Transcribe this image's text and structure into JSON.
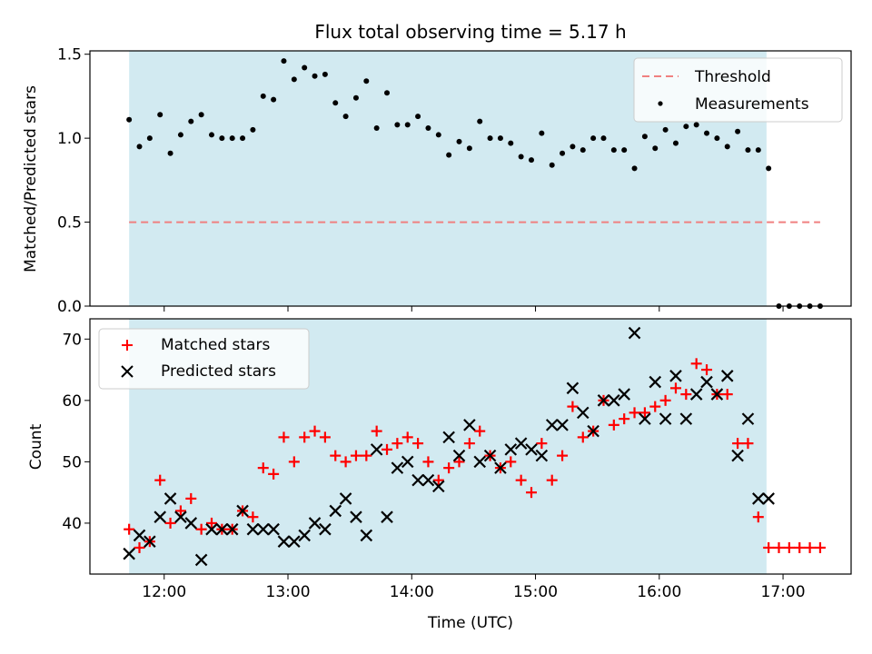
{
  "title": "Flux total observing time = 5.17 h",
  "shade_color": "#add8e6",
  "colors": {
    "threshold": "#f08080",
    "measurements": "#000000",
    "matched": "#ff0000",
    "predicted": "#000000"
  },
  "chart_data": [
    {
      "type": "scatter",
      "ylabel": "Matched/Predicted stars",
      "ylim": [
        0,
        1.52
      ],
      "yticks": [
        0.0,
        0.5,
        1.0,
        1.5
      ],
      "ytick_labels": [
        "0.0",
        "0.5",
        "1.0",
        "1.5"
      ],
      "xlim": [
        "11:24",
        "17:33"
      ],
      "shaded_range": [
        "11:43",
        "16:52"
      ],
      "legend": {
        "placement": "top-right",
        "entries": [
          "Threshold",
          "Measurements"
        ]
      },
      "threshold": {
        "name": "Threshold",
        "y": 0.5,
        "x": [
          "11:43",
          "17:18"
        ]
      },
      "measurements": {
        "name": "Measurements",
        "x": [
          "11:43",
          "11:48",
          "11:53",
          "11:58",
          "12:03",
          "12:08",
          "12:13",
          "12:18",
          "12:23",
          "12:28",
          "12:33",
          "12:38",
          "12:43",
          "12:48",
          "12:53",
          "12:58",
          "13:03",
          "13:08",
          "13:13",
          "13:18",
          "13:23",
          "13:28",
          "13:33",
          "13:38",
          "13:43",
          "13:48",
          "13:53",
          "13:58",
          "14:03",
          "14:08",
          "14:13",
          "14:18",
          "14:23",
          "14:28",
          "14:33",
          "14:38",
          "14:43",
          "14:48",
          "14:53",
          "14:58",
          "15:03",
          "15:08",
          "15:13",
          "15:18",
          "15:23",
          "15:28",
          "15:33",
          "15:38",
          "15:43",
          "15:48",
          "15:53",
          "15:58",
          "16:03",
          "16:08",
          "16:13",
          "16:18",
          "16:23",
          "16:28",
          "16:33",
          "16:38",
          "16:43",
          "16:48",
          "16:53",
          "16:58",
          "17:03",
          "17:08",
          "17:13",
          "17:18"
        ],
        "y": [
          1.11,
          0.95,
          1.0,
          1.14,
          0.91,
          1.02,
          1.1,
          1.14,
          1.02,
          1.0,
          1.0,
          1.0,
          1.05,
          1.25,
          1.23,
          1.46,
          1.35,
          1.42,
          1.37,
          1.38,
          1.21,
          1.13,
          1.24,
          1.34,
          1.06,
          1.27,
          1.08,
          1.08,
          1.13,
          1.06,
          1.02,
          0.9,
          0.98,
          0.94,
          1.1,
          1.0,
          1.0,
          0.97,
          0.89,
          0.87,
          1.03,
          0.84,
          0.91,
          0.95,
          0.93,
          1.0,
          1.0,
          0.93,
          0.93,
          0.82,
          1.01,
          0.94,
          1.05,
          0.97,
          1.07,
          1.08,
          1.03,
          1.0,
          0.95,
          1.04,
          0.93,
          0.93,
          0.82,
          0.0,
          0.0,
          0.0,
          0.0,
          0.0
        ]
      },
      "xticks": [
        "12:00",
        "13:00",
        "14:00",
        "15:00",
        "16:00",
        "17:00"
      ]
    },
    {
      "type": "scatter",
      "xlabel": "Time (UTC)",
      "ylabel": "Count",
      "ylim": [
        31.7,
        73.3
      ],
      "yticks": [
        40,
        50,
        60,
        70
      ],
      "ytick_labels": [
        "40",
        "50",
        "60",
        "70"
      ],
      "xlim": [
        "11:24",
        "17:33"
      ],
      "xticks": [
        "12:00",
        "13:00",
        "14:00",
        "15:00",
        "16:00",
        "17:00"
      ],
      "xtick_labels": [
        "12:00",
        "13:00",
        "14:00",
        "15:00",
        "16:00",
        "17:00"
      ],
      "shaded_range": [
        "11:43",
        "16:52"
      ],
      "legend": {
        "placement": "top-left",
        "entries": [
          "Matched stars",
          "Predicted stars"
        ]
      },
      "series": [
        {
          "name": "Matched stars",
          "x": [
            "11:43",
            "11:48",
            "11:53",
            "11:58",
            "12:03",
            "12:08",
            "12:13",
            "12:18",
            "12:23",
            "12:28",
            "12:33",
            "12:38",
            "12:43",
            "12:48",
            "12:53",
            "12:58",
            "13:03",
            "13:08",
            "13:13",
            "13:18",
            "13:23",
            "13:28",
            "13:33",
            "13:38",
            "13:43",
            "13:48",
            "13:53",
            "13:58",
            "14:03",
            "14:08",
            "14:13",
            "14:18",
            "14:23",
            "14:28",
            "14:33",
            "14:38",
            "14:43",
            "14:48",
            "14:53",
            "14:58",
            "15:03",
            "15:08",
            "15:13",
            "15:18",
            "15:23",
            "15:28",
            "15:33",
            "15:38",
            "15:43",
            "15:48",
            "15:53",
            "15:58",
            "16:03",
            "16:08",
            "16:13",
            "16:18",
            "16:23",
            "16:28",
            "16:33",
            "16:38",
            "16:43",
            "16:48",
            "16:53",
            "16:58",
            "17:03",
            "17:08",
            "17:13",
            "17:18"
          ],
          "y": [
            39,
            36,
            37,
            47,
            40,
            42,
            44,
            39,
            40,
            39,
            39,
            42,
            41,
            49,
            48,
            54,
            50,
            54,
            55,
            54,
            51,
            50,
            51,
            51,
            55,
            52,
            53,
            54,
            53,
            50,
            47,
            49,
            50,
            53,
            55,
            51,
            49,
            50,
            47,
            45,
            53,
            47,
            51,
            59,
            54,
            55,
            60,
            56,
            57,
            58,
            58,
            59,
            60,
            62,
            61,
            66,
            65,
            61,
            61,
            53,
            53,
            41,
            36,
            36,
            36,
            36,
            36,
            36
          ]
        },
        {
          "name": "Predicted stars",
          "x": [
            "11:43",
            "11:48",
            "11:53",
            "11:58",
            "12:03",
            "12:08",
            "12:13",
            "12:18",
            "12:23",
            "12:28",
            "12:33",
            "12:38",
            "12:43",
            "12:48",
            "12:53",
            "12:58",
            "13:03",
            "13:08",
            "13:13",
            "13:18",
            "13:23",
            "13:28",
            "13:33",
            "13:38",
            "13:43",
            "13:48",
            "13:53",
            "13:58",
            "14:03",
            "14:08",
            "14:13",
            "14:18",
            "14:23",
            "14:28",
            "14:33",
            "14:38",
            "14:43",
            "14:48",
            "14:53",
            "14:58",
            "15:03",
            "15:08",
            "15:13",
            "15:18",
            "15:23",
            "15:28",
            "15:33",
            "15:38",
            "15:43",
            "15:48",
            "15:53",
            "15:58",
            "16:03",
            "16:08",
            "16:13",
            "16:18",
            "16:23",
            "16:28",
            "16:33",
            "16:38",
            "16:43",
            "16:48",
            "16:53"
          ],
          "y": [
            35,
            38,
            37,
            41,
            44,
            41,
            40,
            34,
            39,
            39,
            39,
            42,
            39,
            39,
            39,
            37,
            37,
            38,
            40,
            39,
            42,
            44,
            41,
            38,
            52,
            41,
            49,
            50,
            47,
            47,
            46,
            54,
            51,
            56,
            50,
            51,
            49,
            52,
            53,
            52,
            51,
            56,
            56,
            62,
            58,
            55,
            60,
            60,
            61,
            71,
            57,
            63,
            57,
            64,
            57,
            61,
            63,
            61,
            64,
            51,
            57,
            44,
            44
          ]
        }
      ]
    }
  ]
}
